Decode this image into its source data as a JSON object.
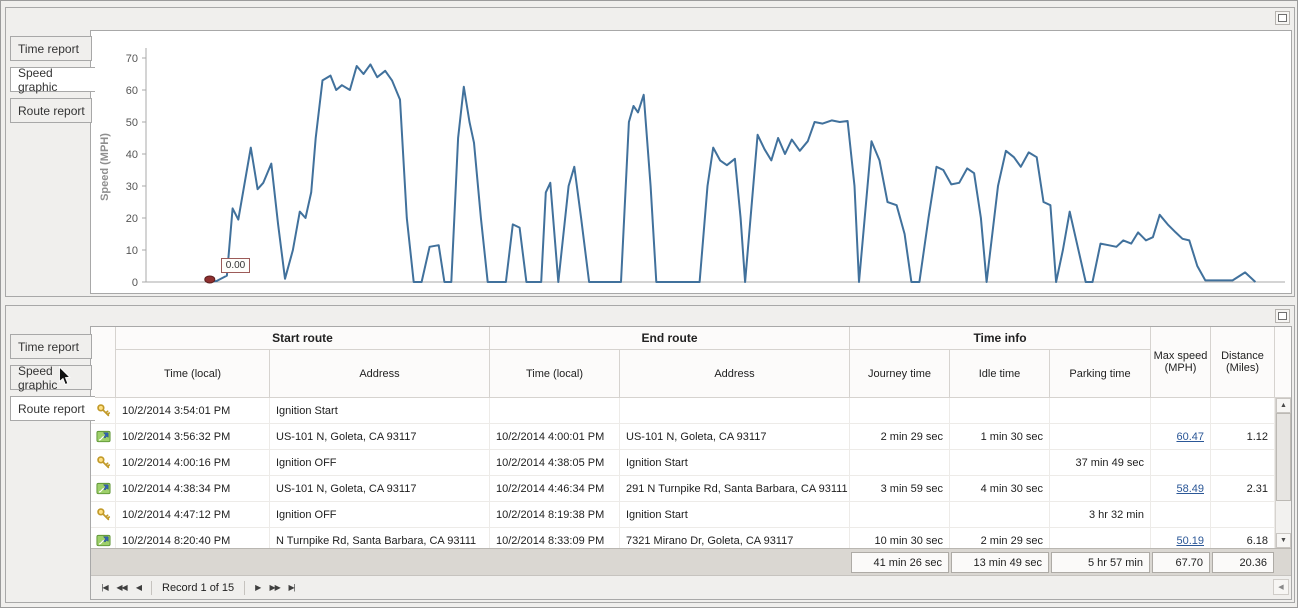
{
  "tabs": [
    "Time report",
    "Speed graphic",
    "Route report"
  ],
  "top_panel": {
    "selected_tab": 1
  },
  "bottom_panel": {
    "selected_tab": 2
  },
  "icons": {
    "scroll_up": "▲",
    "scroll_down": "▼",
    "hscroll_left": "◀",
    "collapse": "collapse-square",
    "row_icons": [
      "key-icon",
      "route-icon"
    ]
  },
  "chart_data": {
    "type": "line",
    "title": "",
    "xlabel": "",
    "ylabel": "Speed (MPH)",
    "ylim": [
      0,
      70
    ],
    "xlim": [
      0,
      100
    ],
    "yticks": [
      0,
      10,
      20,
      30,
      40,
      50,
      60,
      70
    ],
    "grid": false,
    "legend": false,
    "line_color": "#41719c",
    "marker": {
      "x": 5.6,
      "y": 0.8,
      "label": "0.00",
      "color": "#8e2f2f"
    },
    "points": [
      [
        5.4,
        0
      ],
      [
        6.2,
        0.3
      ],
      [
        7.1,
        2
      ],
      [
        7.6,
        23
      ],
      [
        8.1,
        19.5
      ],
      [
        9.2,
        42
      ],
      [
        9.8,
        29
      ],
      [
        10.3,
        31
      ],
      [
        11.0,
        37
      ],
      [
        11.6,
        18
      ],
      [
        12.2,
        1
      ],
      [
        12.9,
        10
      ],
      [
        13.5,
        22
      ],
      [
        14.0,
        20
      ],
      [
        14.5,
        28
      ],
      [
        14.9,
        45
      ],
      [
        15.5,
        63
      ],
      [
        16.2,
        64.5
      ],
      [
        16.7,
        60
      ],
      [
        17.2,
        61.5
      ],
      [
        17.9,
        60
      ],
      [
        18.5,
        67.5
      ],
      [
        19.1,
        65
      ],
      [
        19.7,
        68
      ],
      [
        20.3,
        64
      ],
      [
        21.0,
        66
      ],
      [
        21.6,
        63
      ],
      [
        22.3,
        57
      ],
      [
        22.9,
        20
      ],
      [
        23.5,
        0
      ],
      [
        24.2,
        0
      ],
      [
        24.9,
        11
      ],
      [
        25.7,
        11.5
      ],
      [
        26.2,
        0
      ],
      [
        26.8,
        0
      ],
      [
        27.4,
        45
      ],
      [
        27.9,
        61
      ],
      [
        28.4,
        50
      ],
      [
        28.8,
        43.5
      ],
      [
        29.4,
        20
      ],
      [
        30.0,
        0
      ],
      [
        31.6,
        0
      ],
      [
        32.2,
        18
      ],
      [
        32.8,
        17
      ],
      [
        33.4,
        0
      ],
      [
        34.7,
        0
      ],
      [
        35.1,
        28
      ],
      [
        35.5,
        31
      ],
      [
        36.2,
        0
      ],
      [
        37.1,
        30
      ],
      [
        37.6,
        36
      ],
      [
        38.2,
        20
      ],
      [
        38.9,
        0
      ],
      [
        41.7,
        0
      ],
      [
        42.4,
        50
      ],
      [
        42.8,
        55
      ],
      [
        43.2,
        53
      ],
      [
        43.7,
        58.5
      ],
      [
        44.3,
        30
      ],
      [
        44.8,
        0
      ],
      [
        48.6,
        0
      ],
      [
        49.3,
        30
      ],
      [
        49.8,
        42
      ],
      [
        50.4,
        38
      ],
      [
        51.0,
        36.5
      ],
      [
        51.7,
        38.5
      ],
      [
        52.2,
        20
      ],
      [
        52.6,
        0
      ],
      [
        53.2,
        25
      ],
      [
        53.7,
        46
      ],
      [
        54.3,
        41.5
      ],
      [
        54.9,
        38
      ],
      [
        55.5,
        45
      ],
      [
        56.1,
        40
      ],
      [
        56.7,
        44.5
      ],
      [
        57.4,
        41
      ],
      [
        58.1,
        44
      ],
      [
        58.7,
        50
      ],
      [
        59.4,
        49.5
      ],
      [
        60.2,
        50.5
      ],
      [
        60.9,
        50
      ],
      [
        61.6,
        50.3
      ],
      [
        62.2,
        30
      ],
      [
        62.6,
        0
      ],
      [
        63.1,
        20
      ],
      [
        63.7,
        44
      ],
      [
        64.4,
        38
      ],
      [
        65.1,
        25
      ],
      [
        65.9,
        24
      ],
      [
        66.6,
        15
      ],
      [
        67.2,
        0
      ],
      [
        67.9,
        0
      ],
      [
        68.7,
        20
      ],
      [
        69.4,
        36
      ],
      [
        70.0,
        35
      ],
      [
        70.7,
        30.5
      ],
      [
        71.4,
        31
      ],
      [
        72.1,
        35.5
      ],
      [
        72.7,
        34
      ],
      [
        73.3,
        20
      ],
      [
        73.8,
        0
      ],
      [
        74.8,
        30
      ],
      [
        75.5,
        41
      ],
      [
        76.2,
        39
      ],
      [
        76.8,
        36
      ],
      [
        77.5,
        40.5
      ],
      [
        78.2,
        39
      ],
      [
        78.8,
        25
      ],
      [
        79.4,
        24
      ],
      [
        79.9,
        0
      ],
      [
        80.5,
        10
      ],
      [
        81.1,
        22
      ],
      [
        81.8,
        11
      ],
      [
        82.5,
        0
      ],
      [
        83.1,
        0
      ],
      [
        83.8,
        12
      ],
      [
        84.5,
        11.5
      ],
      [
        85.2,
        11
      ],
      [
        85.8,
        13
      ],
      [
        86.5,
        12
      ],
      [
        87.1,
        15.5
      ],
      [
        87.8,
        13
      ],
      [
        88.4,
        14
      ],
      [
        89.0,
        21
      ],
      [
        89.7,
        18
      ],
      [
        90.4,
        15.5
      ],
      [
        91.0,
        13.5
      ],
      [
        91.6,
        13
      ],
      [
        92.3,
        5
      ],
      [
        93.0,
        0.5
      ],
      [
        94.1,
        0.5
      ],
      [
        95.4,
        0.5
      ],
      [
        96.5,
        3
      ],
      [
        97.4,
        0
      ]
    ]
  },
  "table": {
    "groups": [
      "Start route",
      "End route",
      "Time info"
    ],
    "columns": [
      "Time (local)",
      "Address",
      "Time (local)",
      "Address",
      "Journey time",
      "Idle time",
      "Parking time",
      "Max speed (MPH)",
      "Distance (Miles)"
    ],
    "rows": [
      {
        "icon": "key",
        "cells": [
          "10/2/2014 3:54:01 PM",
          "Ignition Start",
          "",
          "",
          "",
          "",
          "",
          "",
          ""
        ]
      },
      {
        "icon": "route",
        "cells": [
          "10/2/2014 3:56:32 PM",
          "US-101 N, Goleta, CA 93117",
          "10/2/2014 4:00:01 PM",
          "US-101 N, Goleta, CA 93117",
          "2 min 29 sec",
          "1 min 30 sec",
          "",
          "60.47",
          "1.12"
        ]
      },
      {
        "icon": "key",
        "cells": [
          "10/2/2014 4:00:16 PM",
          "Ignition OFF",
          "10/2/2014 4:38:05 PM",
          "Ignition Start",
          "",
          "",
          "37 min 49 sec",
          "",
          ""
        ]
      },
      {
        "icon": "route",
        "cells": [
          "10/2/2014 4:38:34 PM",
          "US-101 N, Goleta, CA 93117",
          "10/2/2014 4:46:34 PM",
          "291 N Turnpike Rd, Santa Barbara, CA 93111",
          "3 min 59 sec",
          "4 min 30 sec",
          "",
          "58.49",
          "2.31"
        ]
      },
      {
        "icon": "key",
        "cells": [
          "10/2/2014 4:47:12 PM",
          "Ignition OFF",
          "10/2/2014 8:19:38 PM",
          "Ignition Start",
          "",
          "",
          "3 hr 32 min",
          "",
          ""
        ]
      },
      {
        "icon": "route",
        "cells": [
          "10/2/2014 8:20:40 PM",
          "N Turnpike Rd, Santa Barbara, CA 93111",
          "10/2/2014 8:33:09 PM",
          "7321 Mirano Dr, Goleta, CA 93117",
          "10 min 30 sec",
          "2 min 29 sec",
          "",
          "50.19",
          "6.18"
        ]
      }
    ],
    "summary": {
      "journey_time": "41 min 26 sec",
      "idle_time": "13 min 49 sec",
      "parking_time": "5 hr 57 min",
      "max_speed": "67.70",
      "distance": "20.36"
    },
    "pager": {
      "record_label": "Record 1 of 15",
      "buttons": [
        {
          "name": "first",
          "glyph": "|◀"
        },
        {
          "name": "prev-page",
          "glyph": "◀◀"
        },
        {
          "name": "prev",
          "glyph": "◀"
        },
        {
          "name": "next",
          "glyph": "▶"
        },
        {
          "name": "next-page",
          "glyph": "▶▶"
        },
        {
          "name": "last",
          "glyph": "▶|"
        }
      ]
    }
  }
}
